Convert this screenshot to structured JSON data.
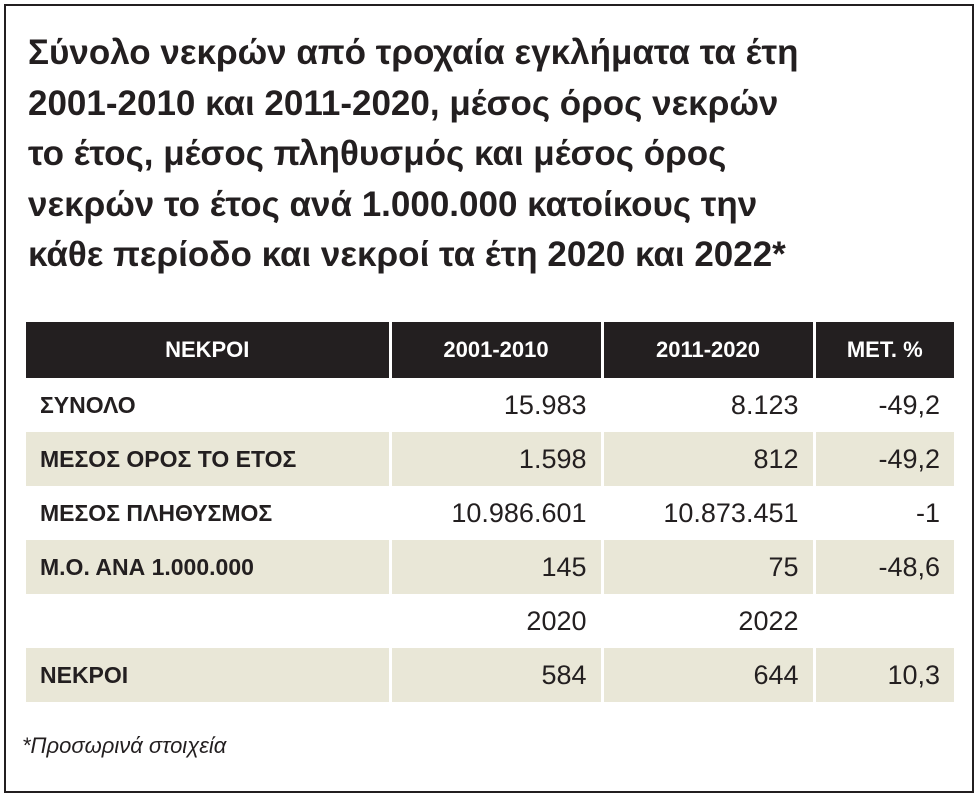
{
  "title_lines": [
    "Σύνολο νεκρών από τροχαία εγκλήματα τα έτη",
    "2001-2010 και 2011-2020, μέσος όρος νεκρών",
    "το έτος, μέσος πληθυσμός και μέσος όρος",
    "νεκρών το έτος ανά 1.000.000 κατοίκους την",
    "κάθε περίοδο και νεκροί τα έτη 2020 και 2022*"
  ],
  "table": {
    "headers": [
      "ΝΕΚΡΟΙ",
      "2001-2010",
      "2011-2020",
      "ΜΕΤ. %"
    ],
    "rows": [
      [
        "ΣΥΝΟΛΟ",
        "15.983",
        "8.123",
        "-49,2"
      ],
      [
        "ΜΕΣΟΣ ΟΡΟΣ ΤΟ ΕΤΟΣ",
        "1.598",
        "812",
        "-49,2"
      ],
      [
        "ΜΕΣΟΣ ΠΛΗΘΥΣΜΟΣ",
        "10.986.601",
        "10.873.451",
        "-1"
      ],
      [
        "Μ.Ο. ΑΝΑ 1.000.000",
        "145",
        "75",
        "-48,6"
      ],
      [
        "",
        "2020",
        "2022",
        ""
      ],
      [
        "ΝΕΚΡΟΙ",
        "584",
        "644",
        "10,3"
      ]
    ]
  },
  "footnote": "*Προσωρινά στοιχεία",
  "colors": {
    "header_bg": "#231f20",
    "header_text": "#ffffff",
    "shade_row": "#e9e7d7",
    "text": "#231f20"
  }
}
